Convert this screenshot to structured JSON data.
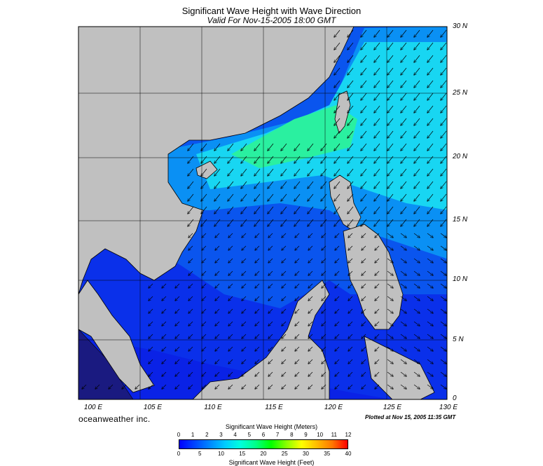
{
  "title": "Significant Wave Height with Wave Direction",
  "subtitle": "Valid For Nov-15-2005 18:00 GMT",
  "lat_labels": [
    "30 N",
    "25 N",
    "20 N",
    "15 N",
    "10 N",
    "5 N",
    "0"
  ],
  "lon_labels": [
    "100 E",
    "105 E",
    "110 E",
    "115 E",
    "120 E",
    "125 E",
    "130 E"
  ],
  "brand": "oceanweather inc.",
  "plotted": "Plotted at Nov 15, 2005 11:35 GMT",
  "legend": {
    "meters_title": "Significant Wave Height (Meters)",
    "feet_title": "Significant Wave Height (Feet)",
    "meters_ticks": [
      "0",
      "1",
      "2",
      "3",
      "4",
      "5",
      "6",
      "7",
      "8",
      "9",
      "10",
      "11",
      "12"
    ],
    "feet_ticks": [
      "0",
      "5",
      "10",
      "15",
      "20",
      "25",
      "30",
      "35",
      "40"
    ],
    "colors": [
      "#0000ff",
      "#0044ff",
      "#0088ff",
      "#00ccff",
      "#00ffdd",
      "#00ff88",
      "#00ff00",
      "#88ff00",
      "#ffff00",
      "#ffbb00",
      "#ff7700",
      "#ff0000"
    ]
  },
  "map_colors": {
    "land": "#c0c0c0",
    "deep_low": "#0a22e6",
    "low": "#0a55ee",
    "mid": "#0a90f4",
    "high": "#18d6f2",
    "peak": "#2af0a0"
  }
}
